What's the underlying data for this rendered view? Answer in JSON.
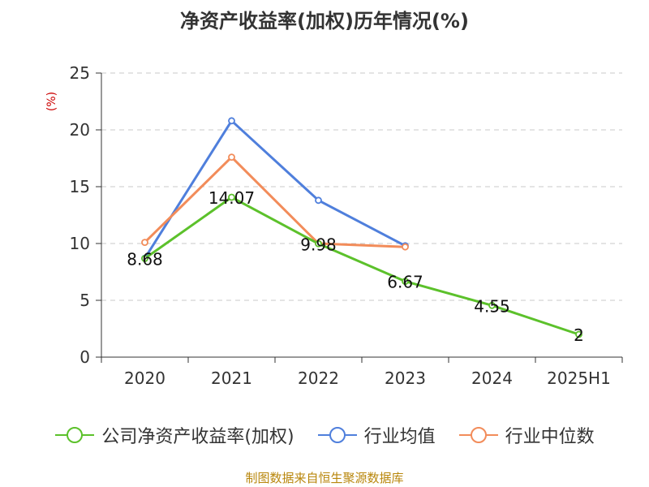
{
  "title": "净资产收益率(加权)历年情况(%)",
  "source": "制图数据来自恒生聚源数据库",
  "chart_data": {
    "type": "line",
    "title": "净资产收益率(加权)历年情况(%)",
    "ylabel": "(%)",
    "xlabel": "",
    "categories": [
      "2020",
      "2021",
      "2022",
      "2023",
      "2024",
      "2025H1"
    ],
    "ylim": [
      0,
      25
    ],
    "yticks": [
      0,
      5,
      10,
      15,
      20,
      25
    ],
    "grid": true,
    "legend_position": "bottom",
    "series": [
      {
        "name": "公司净资产收益率(加权)",
        "color": "#5cc12b",
        "values": [
          8.68,
          14.07,
          9.98,
          6.67,
          4.55,
          2
        ],
        "labels": [
          "8.68",
          "14.07",
          "9.98",
          "6.67",
          "4.55",
          "2"
        ],
        "show_labels": true
      },
      {
        "name": "行业均值",
        "color": "#4f7fdc",
        "values": [
          8.7,
          20.8,
          13.8,
          9.8,
          null,
          null
        ],
        "show_labels": false
      },
      {
        "name": "行业中位数",
        "color": "#f28c5a",
        "values": [
          10.1,
          17.6,
          10.0,
          9.7,
          null,
          null
        ],
        "show_labels": false
      }
    ]
  }
}
